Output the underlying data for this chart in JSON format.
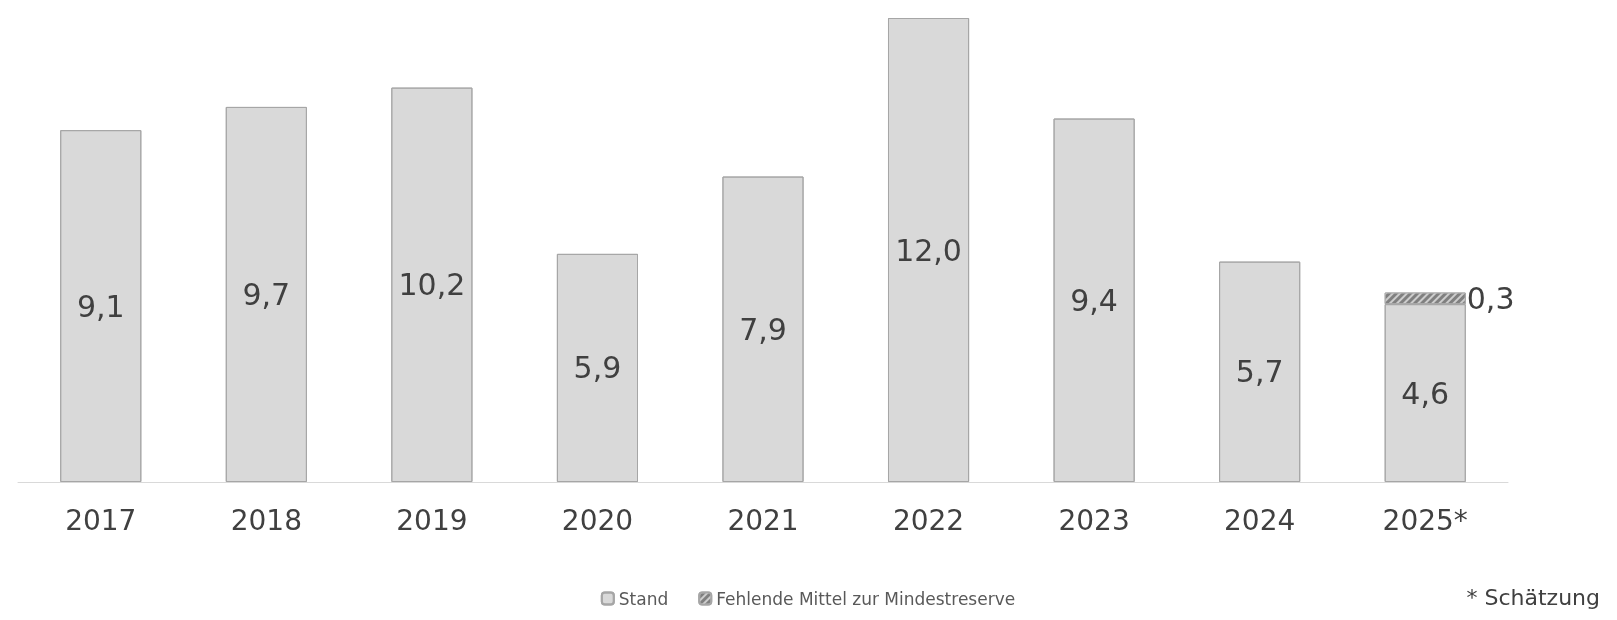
{
  "chart_data": {
    "type": "bar",
    "categories": [
      "2017",
      "2018",
      "2019",
      "2020",
      "2021",
      "2022",
      "2023",
      "2024",
      "2025*"
    ],
    "stacked": true,
    "series": [
      {
        "name": "Stand",
        "color": "#d9d9d9",
        "values": [
          9.1,
          9.7,
          10.2,
          5.9,
          7.9,
          12.0,
          9.4,
          5.7,
          4.6
        ],
        "value_labels": [
          "9,1",
          "9,7",
          "10,2",
          "5,9",
          "7,9",
          "12,0",
          "9,4",
          "5,7",
          "4,6"
        ]
      },
      {
        "name": "Fehlende Mittel zur Mindestreserve",
        "color": "#808080",
        "values": [
          null,
          null,
          null,
          null,
          null,
          null,
          null,
          null,
          0.3
        ],
        "value_labels": [
          null,
          null,
          null,
          null,
          null,
          null,
          null,
          null,
          "0,3"
        ]
      }
    ],
    "legend": "bottom",
    "grid": false,
    "annotations": [
      "* Schätzung"
    ]
  }
}
